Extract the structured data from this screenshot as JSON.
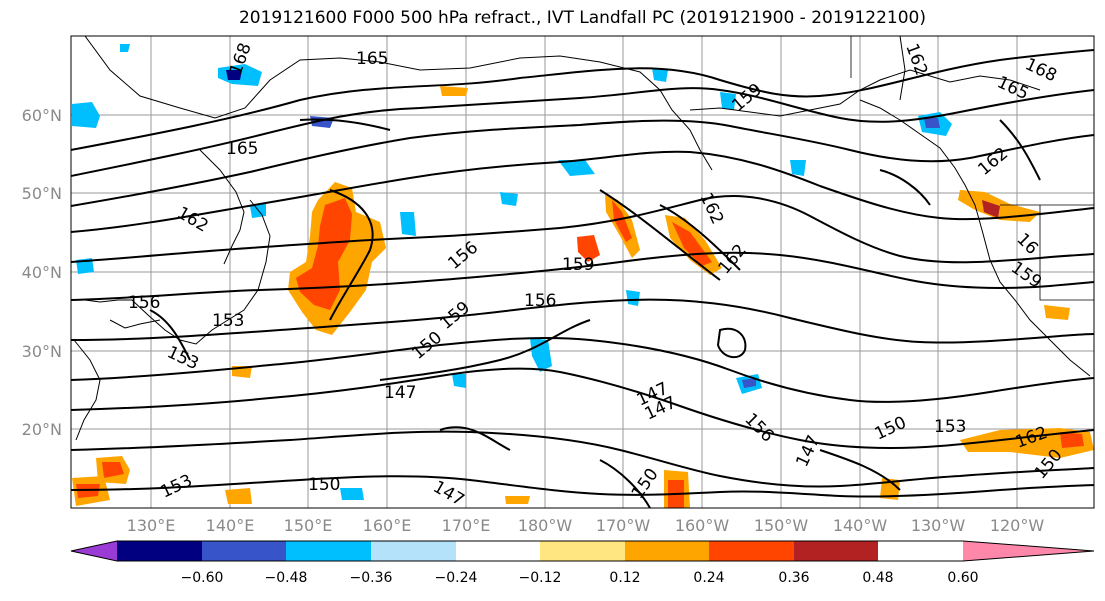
{
  "title": "2019121600 F000 500 hPa refract., IVT Landfall PC (2019121900 - 2019122100)",
  "lat_labels": [
    "60°N",
    "50°N",
    "40°N",
    "30°N",
    "20°N"
  ],
  "lon_labels": [
    "130°E",
    "140°E",
    "150°E",
    "160°E",
    "170°E",
    "180°W",
    "170°W",
    "160°W",
    "150°W",
    "140°W",
    "130°W",
    "120°W"
  ],
  "contour_labels": [
    "168",
    "165",
    "165",
    "162",
    "156",
    "153",
    "153",
    "147",
    "150",
    "156",
    "159",
    "156",
    "159",
    "162",
    "162",
    "159",
    "162",
    "165",
    "168",
    "162",
    "16",
    "159",
    "147",
    "147",
    "156",
    "150",
    "153",
    "162",
    "147",
    "150",
    "153",
    "150",
    "147",
    "150"
  ],
  "colorbar": {
    "tick_labels": [
      "−0.60",
      "−0.48",
      "−0.36",
      "−0.24",
      "−0.12",
      "0.12",
      "0.24",
      "0.36",
      "0.48",
      "0.60"
    ],
    "colors": [
      "#9b3bd6",
      "#000080",
      "#3755c8",
      "#00bfff",
      "#b3e2fa",
      "#ffffff",
      "#ffe680",
      "#ffa500",
      "#ff4500",
      "#b22222",
      "#ff88aa"
    ]
  }
}
